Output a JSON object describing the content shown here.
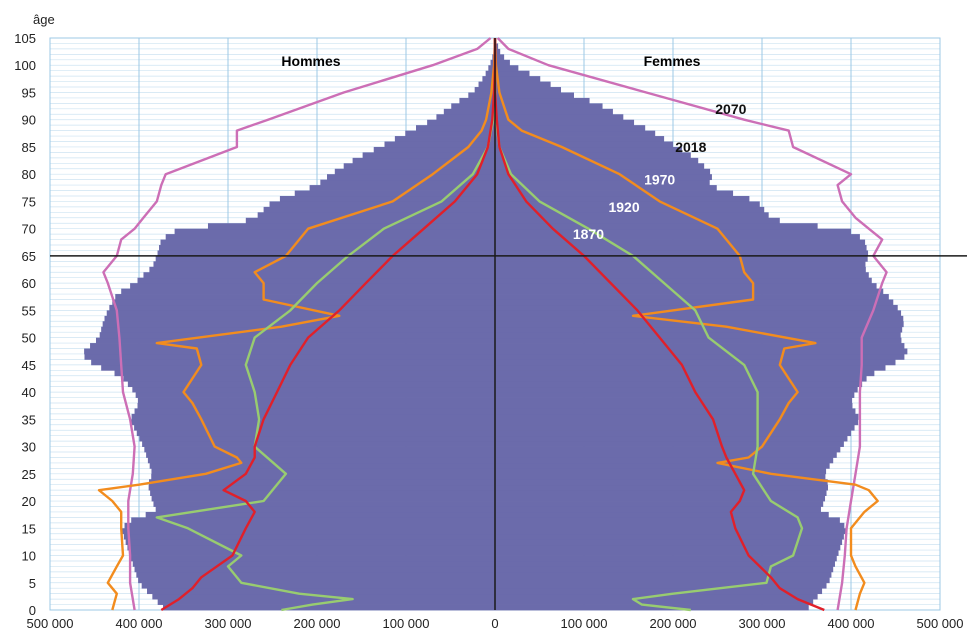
{
  "chart_data": {
    "type": "area",
    "title": "",
    "ylabel": "âge",
    "xlabel": "",
    "group_labels": {
      "left": "Hommes",
      "right": "Femmes"
    },
    "xlim": [
      -500000,
      500000
    ],
    "ylim": [
      0,
      105
    ],
    "x_tick_values": [
      -500000,
      -400000,
      -300000,
      -200000,
      -100000,
      0,
      100000,
      200000,
      300000,
      400000,
      500000
    ],
    "x_tick_labels": [
      "500 000",
      "400 000",
      "300 000",
      "200 000",
      "100 000",
      "0",
      "100 000",
      "200 000",
      "300 000",
      "400 000",
      "500 000"
    ],
    "y_tick_values": [
      0,
      5,
      10,
      15,
      20,
      25,
      30,
      35,
      40,
      45,
      50,
      55,
      60,
      65,
      70,
      75,
      80,
      85,
      90,
      95,
      100,
      105
    ],
    "y_tick_labels": [
      "0",
      "5",
      "10",
      "15",
      "20",
      "25",
      "30",
      "35",
      "40",
      "45",
      "50",
      "55",
      "60",
      "65",
      "70",
      "75",
      "80",
      "85",
      "90",
      "95",
      "100",
      "105"
    ],
    "reference_line_age": 65,
    "grid": true,
    "colors": {
      "2018": "#6b6bab",
      "2070": "#cc6fb6",
      "1970": "#f28c1e",
      "1920": "#98cc70",
      "1870": "#e0202a"
    },
    "series_labels": [
      {
        "name": "2070",
        "x": 265000,
        "y": 92
      },
      {
        "name": "2018",
        "x": 220000,
        "y": 85
      },
      {
        "name": "1970",
        "x": 185000,
        "y": 79
      },
      {
        "name": "1920",
        "x": 145000,
        "y": 74
      },
      {
        "name": "1870",
        "x": 105000,
        "y": 69
      }
    ],
    "series": [
      {
        "name": "2018",
        "style": "bars",
        "ages": [
          0,
          5,
          10,
          15,
          17,
          18,
          20,
          23,
          25,
          30,
          35,
          38,
          40,
          43,
          45,
          47,
          50,
          53,
          55,
          58,
          60,
          63,
          65,
          68,
          70,
          71,
          72,
          75,
          78,
          80,
          83,
          85,
          88,
          90,
          93,
          95,
          98,
          100,
          102,
          105
        ],
        "men": [
          370000,
          400000,
          410000,
          420000,
          405000,
          380000,
          385000,
          390000,
          385000,
          395000,
          410000,
          400000,
          405000,
          420000,
          450000,
          465000,
          445000,
          440000,
          435000,
          425000,
          405000,
          385000,
          380000,
          375000,
          355000,
          290000,
          270000,
          250000,
          200000,
          185000,
          155000,
          130000,
          95000,
          70000,
          45000,
          25000,
          12000,
          6000,
          2000,
          0
        ],
        "women": [
          350000,
          375000,
          385000,
          395000,
          385000,
          365000,
          370000,
          375000,
          370000,
          390000,
          410000,
          400000,
          405000,
          420000,
          445000,
          465000,
          455000,
          460000,
          455000,
          440000,
          425000,
          415000,
          420000,
          415000,
          395000,
          330000,
          310000,
          295000,
          240000,
          245000,
          225000,
          205000,
          175000,
          150000,
          115000,
          80000,
          45000,
          20000,
          7000,
          0
        ]
      },
      {
        "name": "2070",
        "style": "line",
        "ages": [
          0,
          5,
          10,
          15,
          20,
          25,
          30,
          35,
          40,
          45,
          50,
          55,
          60,
          62,
          65,
          68,
          70,
          72,
          75,
          78,
          80,
          85,
          88,
          90,
          95,
          100,
          103,
          105
        ],
        "men": [
          405000,
          410000,
          410000,
          412000,
          412000,
          407000,
          405000,
          410000,
          418000,
          420000,
          422000,
          425000,
          435000,
          440000,
          425000,
          420000,
          405000,
          395000,
          380000,
          375000,
          370000,
          290000,
          290000,
          255000,
          170000,
          70000,
          20000,
          5000
        ],
        "women": [
          385000,
          390000,
          393000,
          395000,
          400000,
          405000,
          410000,
          410000,
          410000,
          412000,
          412000,
          425000,
          435000,
          440000,
          425000,
          435000,
          420000,
          405000,
          390000,
          385000,
          400000,
          335000,
          330000,
          280000,
          170000,
          60000,
          15000,
          3000
        ]
      },
      {
        "name": "1970",
        "style": "line",
        "ages": [
          0,
          3,
          5,
          8,
          10,
          15,
          18,
          20,
          22,
          23,
          25,
          27,
          28,
          30,
          35,
          38,
          40,
          45,
          48,
          49,
          52,
          54,
          57,
          60,
          62,
          65,
          70,
          75,
          80,
          85,
          88,
          90,
          95,
          100,
          105
        ],
        "men": [
          430000,
          425000,
          435000,
          425000,
          418000,
          420000,
          420000,
          430000,
          445000,
          400000,
          325000,
          285000,
          290000,
          315000,
          330000,
          340000,
          350000,
          330000,
          335000,
          380000,
          240000,
          175000,
          260000,
          260000,
          270000,
          235000,
          210000,
          115000,
          70000,
          30000,
          15000,
          10000,
          4000,
          1000,
          0
        ],
        "women": [
          405000,
          410000,
          415000,
          405000,
          400000,
          400000,
          415000,
          430000,
          420000,
          405000,
          310000,
          250000,
          285000,
          300000,
          320000,
          330000,
          340000,
          320000,
          325000,
          360000,
          260000,
          155000,
          290000,
          290000,
          280000,
          275000,
          250000,
          185000,
          140000,
          75000,
          30000,
          15000,
          5000,
          1000,
          0
        ]
      },
      {
        "name": "1920",
        "style": "line",
        "ages": [
          0,
          1,
          2,
          3,
          5,
          8,
          10,
          15,
          17,
          20,
          25,
          30,
          35,
          40,
          45,
          50,
          55,
          60,
          65,
          70,
          75,
          80,
          85,
          90,
          95,
          100,
          105
        ],
        "men": [
          240000,
          205000,
          160000,
          220000,
          285000,
          300000,
          285000,
          345000,
          380000,
          260000,
          235000,
          270000,
          265000,
          270000,
          280000,
          270000,
          230000,
          200000,
          165000,
          125000,
          60000,
          25000,
          8000,
          2000,
          0,
          0,
          0
        ],
        "women": [
          220000,
          165000,
          155000,
          200000,
          305000,
          310000,
          335000,
          345000,
          340000,
          310000,
          290000,
          295000,
          295000,
          295000,
          280000,
          240000,
          225000,
          190000,
          155000,
          105000,
          50000,
          18000,
          5000,
          1000,
          0,
          0,
          0
        ]
      },
      {
        "name": "1870",
        "style": "line",
        "ages": [
          0,
          2,
          4,
          6,
          10,
          15,
          18,
          20,
          22,
          25,
          28,
          30,
          35,
          40,
          45,
          50,
          55,
          60,
          65,
          70,
          75,
          80,
          85,
          90,
          95,
          100,
          105
        ],
        "men": [
          375000,
          355000,
          340000,
          330000,
          295000,
          280000,
          270000,
          280000,
          305000,
          280000,
          270000,
          270000,
          260000,
          245000,
          230000,
          210000,
          175000,
          145000,
          115000,
          80000,
          45000,
          20000,
          8000,
          3000,
          1000,
          0,
          0
        ],
        "women": [
          370000,
          340000,
          320000,
          310000,
          285000,
          270000,
          265000,
          275000,
          280000,
          270000,
          260000,
          255000,
          245000,
          225000,
          210000,
          185000,
          160000,
          130000,
          100000,
          65000,
          35000,
          15000,
          5000,
          2000,
          0,
          0,
          0
        ]
      }
    ]
  }
}
